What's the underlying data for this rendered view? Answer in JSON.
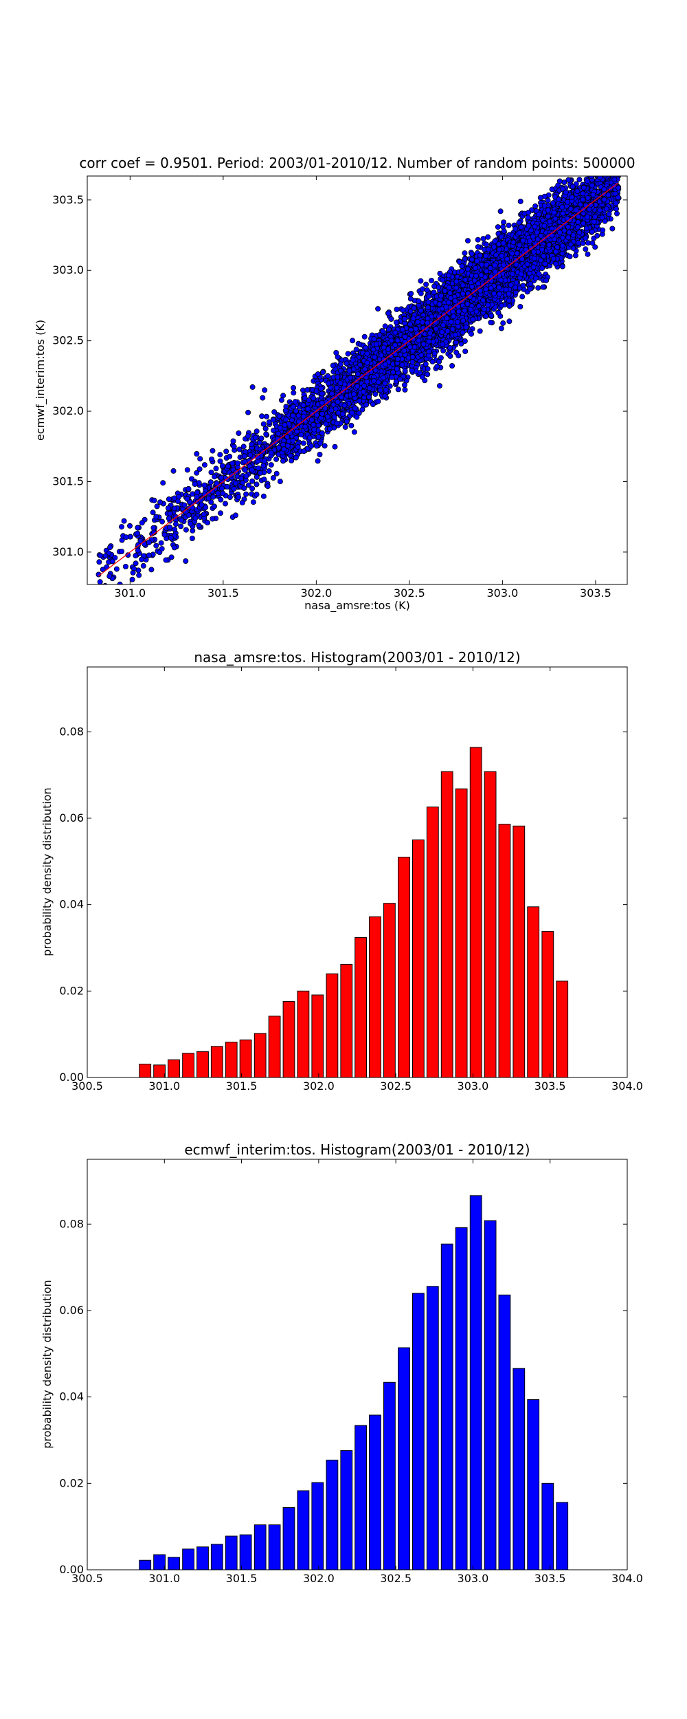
{
  "chart_data": [
    {
      "type": "scatter",
      "title": "corr coef = 0.9501.  Period: 2003/01-2010/12.  Number of random points: 500000",
      "xlabel": "nasa_amsre:tos (K)",
      "ylabel": "ecmwf_interim:tos (K)",
      "xlim": [
        300.77,
        303.67
      ],
      "ylim": [
        300.77,
        303.67
      ],
      "xticks": [
        "301.0",
        "301.5",
        "302.0",
        "302.5",
        "303.0",
        "303.5"
      ],
      "yticks": [
        "301.0",
        "301.5",
        "302.0",
        "302.5",
        "303.0",
        "303.5"
      ],
      "point_color": "#0000ff",
      "point_edge_color": "#000000",
      "line_color": "#ff0000",
      "line_points": [
        [
          300.83,
          300.83
        ],
        [
          303.62,
          303.62
        ]
      ],
      "points_shown": 7000,
      "spread_sd": 0.12
    },
    {
      "type": "bar",
      "title": "nasa_amsre:tos. Histogram(2003/01 - 2010/12)",
      "ylabel": "probability density distribution",
      "xlim": [
        300.5,
        304.0
      ],
      "ylim": [
        0,
        0.095
      ],
      "xticks": [
        "300.5",
        "301.0",
        "301.5",
        "302.0",
        "302.5",
        "303.0",
        "303.5",
        "304.0"
      ],
      "yticks": [
        "0.00",
        "0.02",
        "0.04",
        "0.06",
        "0.08"
      ],
      "bar_color": "#ff0000",
      "bar_width": 0.075,
      "x": [
        300.875,
        300.968,
        301.061,
        301.155,
        301.248,
        301.341,
        301.434,
        301.527,
        301.621,
        301.714,
        301.807,
        301.9,
        301.993,
        302.087,
        302.18,
        302.273,
        302.366,
        302.459,
        302.553,
        302.646,
        302.739,
        302.832,
        302.925,
        303.019,
        303.112,
        303.205,
        303.298,
        303.391,
        303.485,
        303.578
      ],
      "values": [
        0.0031,
        0.0029,
        0.0041,
        0.0056,
        0.006,
        0.0072,
        0.0082,
        0.0087,
        0.0102,
        0.0142,
        0.0176,
        0.02,
        0.0191,
        0.024,
        0.0262,
        0.0324,
        0.0372,
        0.0403,
        0.051,
        0.055,
        0.0626,
        0.0708,
        0.0668,
        0.0764,
        0.0708,
        0.0586,
        0.0582,
        0.0395,
        0.0338,
        0.0223
      ]
    },
    {
      "type": "bar",
      "title": "ecmwf_interim:tos. Histogram(2003/01 - 2010/12)",
      "ylabel": "probability density distribution",
      "xlim": [
        300.5,
        304.0
      ],
      "ylim": [
        0,
        0.095
      ],
      "xticks": [
        "300.5",
        "301.0",
        "301.5",
        "302.0",
        "302.5",
        "303.0",
        "303.5",
        "304.0"
      ],
      "yticks": [
        "0.00",
        "0.02",
        "0.04",
        "0.06",
        "0.08"
      ],
      "bar_color": "#0000ff",
      "bar_width": 0.075,
      "x": [
        300.875,
        300.968,
        301.061,
        301.155,
        301.248,
        301.341,
        301.434,
        301.527,
        301.621,
        301.714,
        301.807,
        301.9,
        301.993,
        302.087,
        302.18,
        302.273,
        302.366,
        302.459,
        302.553,
        302.646,
        302.739,
        302.832,
        302.925,
        303.019,
        303.112,
        303.205,
        303.298,
        303.391,
        303.485,
        303.578
      ],
      "values": [
        0.0022,
        0.0035,
        0.0029,
        0.0048,
        0.0053,
        0.0059,
        0.0078,
        0.0081,
        0.0104,
        0.0104,
        0.0144,
        0.0183,
        0.0202,
        0.0254,
        0.0276,
        0.0334,
        0.0358,
        0.0434,
        0.0514,
        0.064,
        0.0656,
        0.0754,
        0.0792,
        0.0866,
        0.0808,
        0.0636,
        0.0466,
        0.0394,
        0.02,
        0.0156
      ]
    }
  ]
}
